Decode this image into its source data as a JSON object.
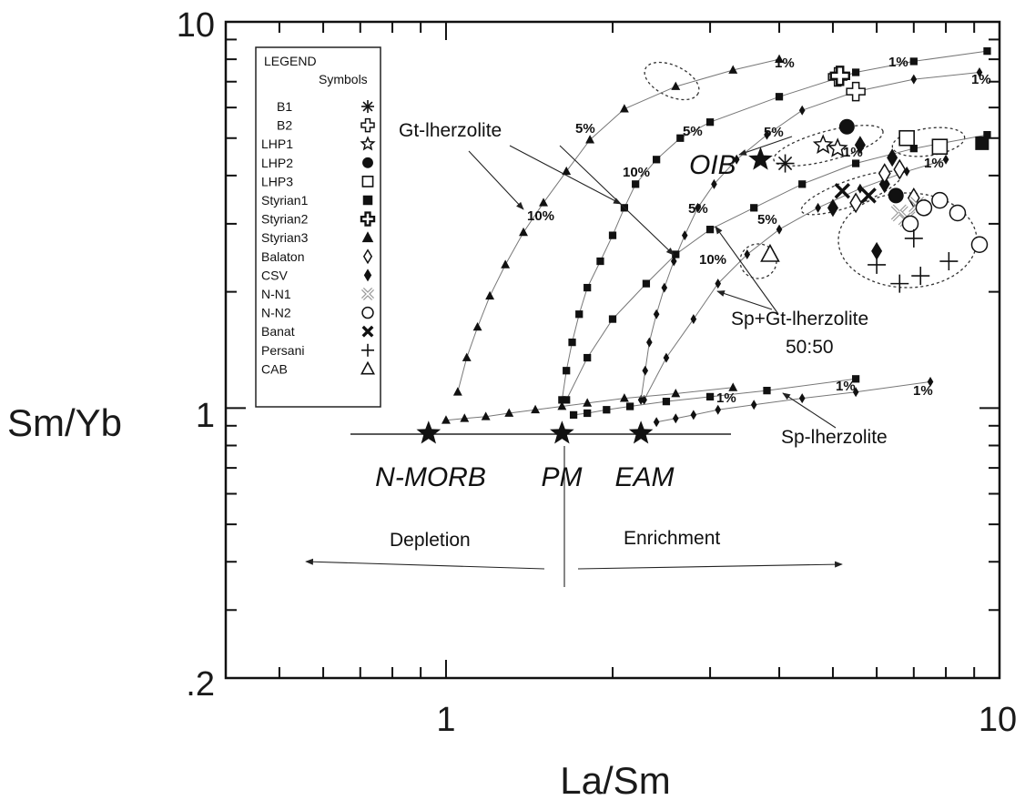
{
  "chart_data": {
    "type": "scatter",
    "xlabel": "La/Sm",
    "ylabel": "Sm/Yb",
    "xscale": "log",
    "yscale": "log",
    "xlim": [
      0.4,
      10
    ],
    "ylim": [
      0.2,
      10
    ],
    "x_ticks": [
      {
        "value": 1,
        "label": "1"
      },
      {
        "value": 10,
        "label": "10"
      }
    ],
    "y_ticks": [
      {
        "value": 0.2,
        "label": ".2"
      },
      {
        "value": 1,
        "label": "1"
      },
      {
        "value": 10,
        "label": "10"
      }
    ],
    "legend": {
      "title": "LEGEND",
      "subtitle": "Symbols",
      "placement": "top-left",
      "entries": [
        {
          "name": "B1",
          "marker": "asterisk"
        },
        {
          "name": "B2",
          "marker": "cross-open"
        },
        {
          "name": "LHP1",
          "marker": "star-open"
        },
        {
          "name": "LHP2",
          "marker": "circle-filled"
        },
        {
          "name": "LHP3",
          "marker": "square-open"
        },
        {
          "name": "Styrian1",
          "marker": "square-filled"
        },
        {
          "name": "Styrian2",
          "marker": "cross-open-thick"
        },
        {
          "name": "Styrian3",
          "marker": "triangle-filled"
        },
        {
          "name": "Balaton",
          "marker": "diamond-open"
        },
        {
          "name": "CSV",
          "marker": "diamond-filled"
        },
        {
          "name": "N-N1",
          "marker": "x-open"
        },
        {
          "name": "N-N2",
          "marker": "circle-open"
        },
        {
          "name": "Banat",
          "marker": "x-bold"
        },
        {
          "name": "Persani",
          "marker": "plus"
        },
        {
          "name": "CAB",
          "marker": "triangle-open"
        }
      ]
    },
    "reference_points": [
      {
        "name": "N-MORB",
        "x": 0.93,
        "y": 0.86
      },
      {
        "name": "PM",
        "x": 1.62,
        "y": 0.86
      },
      {
        "name": "EAM",
        "x": 2.25,
        "y": 0.86
      },
      {
        "name": "OIB",
        "x": 3.7,
        "y": 4.4
      }
    ],
    "melting_curves": [
      {
        "source": "N-MORB",
        "model": "Gt-lherzolite",
        "marker": "triangle-filled",
        "points": [
          [
            1.05,
            1.1
          ],
          [
            1.09,
            1.35
          ],
          [
            1.14,
            1.62
          ],
          [
            1.2,
            1.95
          ],
          [
            1.28,
            2.35
          ],
          [
            1.38,
            2.85
          ],
          [
            1.5,
            3.4
          ],
          [
            1.65,
            4.1
          ],
          [
            1.82,
            4.95
          ],
          [
            2.1,
            5.95
          ],
          [
            2.6,
            6.8
          ],
          [
            3.3,
            7.5
          ],
          [
            4.0,
            8.0
          ]
        ]
      },
      {
        "source": "PM",
        "model": "Gt-lherzolite",
        "marker": "square-filled",
        "points": [
          [
            1.62,
            1.05
          ],
          [
            1.65,
            1.25
          ],
          [
            1.69,
            1.48
          ],
          [
            1.74,
            1.75
          ],
          [
            1.8,
            2.05
          ],
          [
            1.9,
            2.4
          ],
          [
            2.0,
            2.8
          ],
          [
            2.1,
            3.3
          ],
          [
            2.2,
            3.8
          ],
          [
            2.4,
            4.4
          ],
          [
            2.65,
            5.0
          ],
          [
            3.0,
            5.5
          ],
          [
            4.0,
            6.4
          ],
          [
            5.5,
            7.4
          ],
          [
            7.0,
            7.9
          ],
          [
            9.5,
            8.4
          ]
        ]
      },
      {
        "source": "EAM",
        "model": "Gt-lherzolite",
        "marker": "diamond-filled",
        "points": [
          [
            2.25,
            1.05
          ],
          [
            2.29,
            1.25
          ],
          [
            2.33,
            1.48
          ],
          [
            2.4,
            1.75
          ],
          [
            2.48,
            2.05
          ],
          [
            2.58,
            2.4
          ],
          [
            2.7,
            2.8
          ],
          [
            2.85,
            3.3
          ],
          [
            3.05,
            3.8
          ],
          [
            3.35,
            4.4
          ],
          [
            3.8,
            5.1
          ],
          [
            4.4,
            5.9
          ],
          [
            5.5,
            6.6
          ],
          [
            7.0,
            7.1
          ],
          [
            9.2,
            7.4
          ]
        ]
      },
      {
        "source": "PM",
        "model": "Sp+Gt-lherzolite 50:50",
        "marker": "square-filled",
        "points": [
          [
            1.65,
            1.05
          ],
          [
            1.8,
            1.35
          ],
          [
            2.0,
            1.7
          ],
          [
            2.3,
            2.1
          ],
          [
            2.6,
            2.5
          ],
          [
            3.0,
            2.9
          ],
          [
            3.6,
            3.3
          ],
          [
            4.4,
            3.8
          ],
          [
            5.5,
            4.3
          ],
          [
            7.0,
            4.7
          ],
          [
            9.5,
            5.1
          ]
        ]
      },
      {
        "source": "EAM",
        "model": "Sp+Gt-lherzolite 50:50",
        "marker": "diamond-filled",
        "points": [
          [
            2.28,
            1.05
          ],
          [
            2.5,
            1.35
          ],
          [
            2.8,
            1.7
          ],
          [
            3.1,
            2.1
          ],
          [
            3.5,
            2.5
          ],
          [
            4.0,
            2.9
          ],
          [
            4.7,
            3.3
          ],
          [
            5.6,
            3.7
          ],
          [
            6.8,
            4.1
          ],
          [
            8.0,
            4.4
          ]
        ]
      },
      {
        "source": "N-MORB",
        "model": "Sp-lherzolite",
        "marker": "triangle-filled",
        "points": [
          [
            1.0,
            0.93
          ],
          [
            1.08,
            0.94
          ],
          [
            1.18,
            0.95
          ],
          [
            1.3,
            0.97
          ],
          [
            1.45,
            0.99
          ],
          [
            1.62,
            1.01
          ],
          [
            1.8,
            1.03
          ],
          [
            2.1,
            1.06
          ],
          [
            2.6,
            1.09
          ],
          [
            3.3,
            1.13
          ]
        ]
      },
      {
        "source": "PM",
        "model": "Sp-lherzolite",
        "marker": "square-filled",
        "points": [
          [
            1.7,
            0.96
          ],
          [
            1.8,
            0.97
          ],
          [
            1.95,
            0.99
          ],
          [
            2.15,
            1.01
          ],
          [
            2.5,
            1.04
          ],
          [
            3.0,
            1.07
          ],
          [
            3.8,
            1.11
          ],
          [
            5.5,
            1.19
          ]
        ]
      },
      {
        "source": "EAM",
        "model": "Sp-lherzolite",
        "marker": "diamond-filled",
        "points": [
          [
            2.4,
            0.92
          ],
          [
            2.6,
            0.94
          ],
          [
            2.8,
            0.96
          ],
          [
            3.1,
            0.99
          ],
          [
            3.6,
            1.02
          ],
          [
            4.4,
            1.06
          ],
          [
            5.5,
            1.1
          ],
          [
            7.5,
            1.17
          ]
        ]
      }
    ],
    "samples": [
      {
        "series": "B1",
        "marker": "asterisk",
        "points": [
          [
            4.1,
            4.3
          ]
        ]
      },
      {
        "series": "B2",
        "marker": "cross-open",
        "points": [
          [
            5.1,
            7.2
          ],
          [
            5.5,
            6.6
          ]
        ]
      },
      {
        "series": "LHP1",
        "marker": "star-open",
        "points": [
          [
            4.8,
            4.8
          ],
          [
            5.1,
            4.7
          ]
        ]
      },
      {
        "series": "LHP2",
        "marker": "circle-filled",
        "points": [
          [
            5.3,
            5.35
          ],
          [
            6.5,
            3.55
          ]
        ]
      },
      {
        "series": "LHP3",
        "marker": "square-open",
        "points": [
          [
            6.8,
            5.0
          ],
          [
            7.8,
            4.75
          ]
        ]
      },
      {
        "series": "Styrian1",
        "marker": "square-filled",
        "points": [
          [
            9.3,
            4.85
          ]
        ]
      },
      {
        "series": "Styrian2",
        "marker": "cross-open-thick",
        "points": [
          [
            5.15,
            7.25
          ]
        ]
      },
      {
        "series": "CSV",
        "marker": "diamond-filled",
        "points": [
          [
            5.0,
            3.3
          ],
          [
            5.6,
            4.8
          ],
          [
            6.0,
            2.55
          ],
          [
            6.2,
            3.8
          ],
          [
            6.4,
            4.45
          ]
        ]
      },
      {
        "series": "Balaton",
        "marker": "diamond-open",
        "points": [
          [
            5.5,
            3.4
          ],
          [
            6.2,
            4.05
          ],
          [
            6.6,
            4.15
          ],
          [
            7.0,
            3.5
          ]
        ]
      },
      {
        "series": "N-N1",
        "marker": "x-open",
        "points": [
          [
            6.6,
            3.2
          ],
          [
            6.8,
            3.1
          ],
          [
            7.1,
            3.35
          ]
        ]
      },
      {
        "series": "N-N2",
        "marker": "circle-open",
        "points": [
          [
            6.9,
            3.0
          ],
          [
            7.3,
            3.3
          ],
          [
            7.8,
            3.45
          ],
          [
            8.4,
            3.2
          ],
          [
            9.2,
            2.65
          ]
        ]
      },
      {
        "series": "Banat",
        "marker": "x-bold",
        "points": [
          [
            5.2,
            3.65
          ],
          [
            5.8,
            3.55
          ]
        ]
      },
      {
        "series": "Persani",
        "marker": "plus",
        "points": [
          [
            6.0,
            2.35
          ],
          [
            6.6,
            2.1
          ],
          [
            7.0,
            2.75
          ],
          [
            7.2,
            2.2
          ],
          [
            8.1,
            2.4
          ]
        ]
      },
      {
        "series": "CAB",
        "marker": "triangle-open",
        "points": [
          [
            3.85,
            2.5
          ]
        ]
      }
    ],
    "annotations": {
      "gt_lherzolite": "Gt-lherzolite",
      "sp_gt_lherzolite": "Sp+Gt-lherzolite",
      "ratio": "50:50",
      "sp_lherzolite": "Sp-lherzolite",
      "oib": "OIB",
      "depletion": "Depletion",
      "enrichment": "Enrichment",
      "one_pct": "1%",
      "five_pct": "5%",
      "ten_pct": "10%"
    }
  }
}
